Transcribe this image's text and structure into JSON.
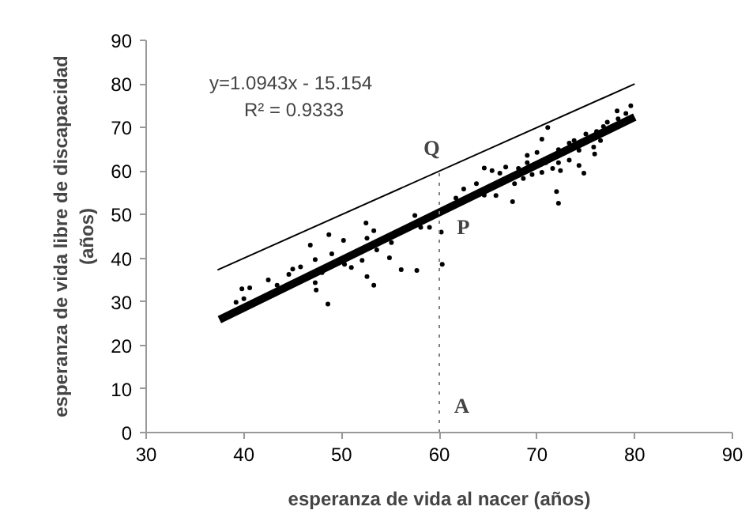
{
  "chart_data": {
    "type": "scatter",
    "xlabel": "esperanza de vida al nacer (años)",
    "ylabel": "esperanza de vida libre de discapacidad\n(años)",
    "xlim": [
      30,
      90
    ],
    "ylim": [
      0,
      90
    ],
    "xticks": [
      30,
      40,
      50,
      60,
      70,
      80,
      90
    ],
    "yticks": [
      0,
      10,
      20,
      30,
      40,
      50,
      60,
      70,
      80,
      90
    ],
    "grid": false,
    "series": [
      {
        "marker": "circle",
        "color": "#000000",
        "x": [
          39.8,
          40.6,
          39.2,
          40.0,
          42.5,
          43.4,
          44.6,
          45.0,
          45.8,
          46.8,
          47.3,
          47.3,
          47.4,
          48.0,
          48.6,
          48.7,
          49.0,
          50.2,
          50.3,
          51.0,
          52.1,
          52.5,
          52.6,
          52.6,
          53.3,
          53.3,
          53.6,
          54.9,
          55.1,
          56.1,
          57.5,
          57.7,
          58.1,
          59.0,
          60.2,
          60.3,
          61.7,
          62.5,
          64.6,
          65.4,
          64.6,
          65.8,
          66.8,
          67.5,
          67.7,
          68.6,
          69.0,
          69.5,
          70.5,
          70.9,
          71.1,
          70.5,
          72.0,
          72.2,
          71.6,
          72.2,
          72.4,
          73.3,
          73.3,
          74.8,
          74.3,
          74.3,
          76.1,
          75.8,
          75.9,
          76.5,
          77.2,
          78.3,
          79.1,
          79.6,
          78.2,
          69.0,
          70.0,
          68.1,
          66.2,
          63.8,
          75.0,
          73.8,
          72.2,
          76.8
        ],
        "values": [
          33.0,
          33.2,
          29.9,
          30.7,
          35.0,
          33.8,
          36.3,
          37.5,
          38.0,
          43.0,
          39.7,
          34.4,
          32.7,
          36.7,
          29.5,
          45.4,
          41.0,
          44.1,
          38.6,
          37.9,
          39.5,
          48.1,
          44.6,
          35.8,
          46.3,
          33.8,
          41.9,
          40.1,
          43.6,
          37.4,
          49.8,
          37.2,
          47.1,
          47.1,
          46.0,
          38.6,
          53.8,
          55.9,
          60.7,
          60.1,
          54.5,
          54.4,
          60.9,
          53.0,
          57.1,
          58.3,
          61.9,
          59.2,
          59.7,
          61.9,
          70.0,
          67.3,
          55.3,
          52.6,
          60.6,
          61.9,
          60.1,
          62.5,
          66.4,
          59.5,
          61.3,
          64.8,
          69.1,
          65.5,
          63.9,
          67.0,
          71.2,
          72.0,
          73.2,
          75.0,
          73.8,
          63.6,
          64.3,
          60.6,
          59.5,
          57.1,
          68.5,
          67.0,
          64.9,
          70.2
        ]
      },
      {
        "type": "line",
        "color": "#000000",
        "x": [
          37.5,
          80
        ],
        "values": [
          25.9,
          72.4
        ]
      },
      {
        "type": "line",
        "color": "#000000",
        "x": [
          37.3,
          80
        ],
        "values": [
          37.3,
          80
        ]
      },
      {
        "type": "line",
        "color": "#808080",
        "line_style": "dotted",
        "x": [
          60,
          60
        ],
        "values": [
          0,
          60
        ]
      }
    ],
    "annotations": [
      "y=1.0943x - 15.154",
      "R² = 0.9333",
      "Q",
      "P",
      "A"
    ]
  }
}
